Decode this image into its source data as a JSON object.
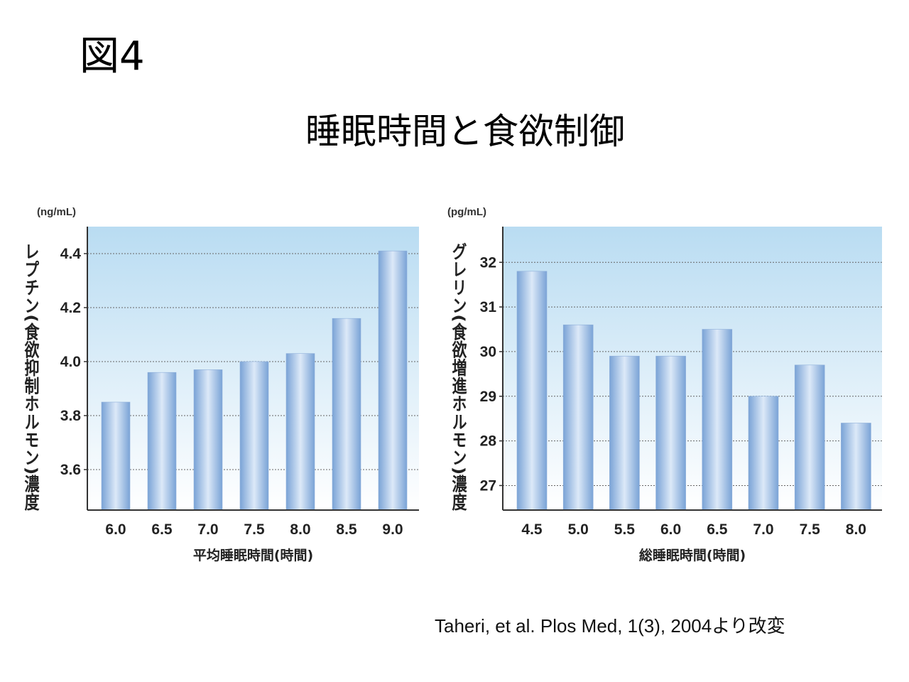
{
  "slide": {
    "figure_label": "図4",
    "title": "睡眠時間と食欲制御",
    "citation": "Taheri, et al. Plos Med, 1(3), 2004より改変"
  },
  "colors": {
    "plot_bg_top": "#b9dcf2",
    "plot_bg_bottom": "#ffffff",
    "bar_edge": "#7aa3d6",
    "bar_center": "#dce9f8",
    "grid": "#666666"
  },
  "chart_data": [
    {
      "type": "bar",
      "title": "",
      "unit": "(ng/mL)",
      "xlabel": "平均睡眠時間(時間)",
      "ylabel": "レプチン(食欲抑制ホルモン)濃度",
      "categories": [
        "6.0",
        "6.5",
        "7.0",
        "7.5",
        "8.0",
        "8.5",
        "9.0"
      ],
      "values": [
        3.85,
        3.96,
        3.97,
        4.0,
        4.03,
        4.16,
        4.41
      ],
      "yticks": [
        "3.6",
        "3.8",
        "4.0",
        "4.2",
        "4.4"
      ],
      "ylim": [
        3.45,
        4.5
      ],
      "grid": true,
      "legend": "none"
    },
    {
      "type": "bar",
      "title": "",
      "unit": "(pg/mL)",
      "xlabel": "総睡眠時間(時間)",
      "ylabel": "グレリン(食欲増進ホルモン)濃度",
      "categories": [
        "4.5",
        "5.0",
        "5.5",
        "6.0",
        "6.5",
        "7.0",
        "7.5",
        "8.0"
      ],
      "values": [
        31.8,
        30.6,
        29.9,
        29.9,
        30.5,
        29.0,
        29.7,
        28.4
      ],
      "yticks": [
        "27",
        "28",
        "29",
        "30",
        "31",
        "32"
      ],
      "ylim": [
        26.45,
        32.8
      ],
      "grid": true,
      "legend": "none"
    }
  ]
}
